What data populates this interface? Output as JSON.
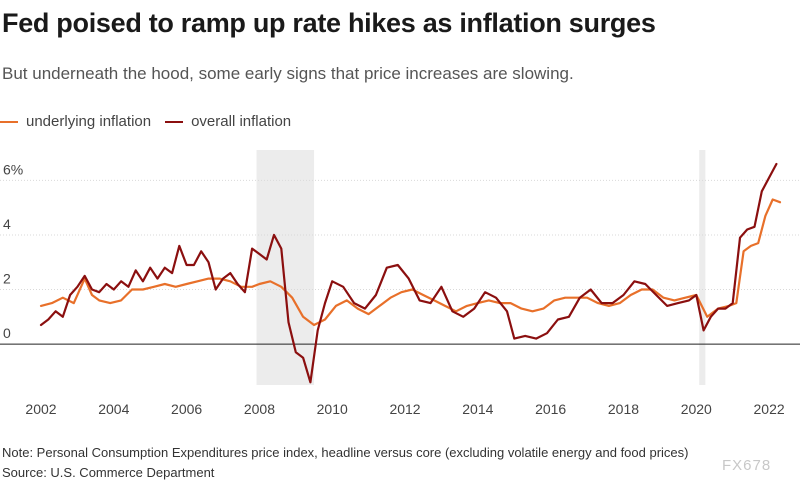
{
  "header": {
    "title": "Fed poised to ramp up rate hikes as inflation surges",
    "subtitle": "But underneath the hood, some early signs that price increases are slowing."
  },
  "footer": {
    "note": "Note: Personal Consumption Expenditures price index, headline versus core (excluding volatile energy and food prices)",
    "source": "Source: U.S. Commerce Department",
    "watermark": "FX678"
  },
  "colors": {
    "underlying": "#e8702a",
    "overall": "#8b0f0f",
    "recession": "#ececec"
  },
  "chart_data": {
    "type": "line",
    "title": "Fed poised to ramp up rate hikes as inflation surges",
    "xlabel": "",
    "ylabel": "",
    "xlim": [
      2002,
      2022.3
    ],
    "ylim": [
      -1.5,
      6.6
    ],
    "y_ticks": [
      0,
      2,
      4,
      6
    ],
    "y_tick_labels": [
      "0",
      "2",
      "4",
      "6%"
    ],
    "x_ticks": [
      2002,
      2004,
      2006,
      2008,
      2010,
      2012,
      2014,
      2016,
      2018,
      2020,
      2022
    ],
    "x_tick_labels": [
      "2002",
      "2004",
      "2006",
      "2008",
      "2010",
      "2012",
      "2014",
      "2016",
      "2018",
      "2020",
      "2022"
    ],
    "legend_position": "top-left",
    "shaded_periods": [
      {
        "label": "recession",
        "start": 2007.92,
        "end": 2009.5
      },
      {
        "label": "recession",
        "start": 2020.08,
        "end": 2020.25
      }
    ],
    "series": [
      {
        "name": "underlying inflation",
        "color": "#e8702a",
        "x": [
          2002.0,
          2002.3,
          2002.6,
          2002.9,
          2003.2,
          2003.4,
          2003.6,
          2003.9,
          2004.2,
          2004.5,
          2004.8,
          2005.1,
          2005.4,
          2005.7,
          2006.0,
          2006.3,
          2006.6,
          2006.9,
          2007.2,
          2007.5,
          2007.8,
          2008.0,
          2008.3,
          2008.6,
          2008.9,
          2009.2,
          2009.5,
          2009.8,
          2010.1,
          2010.4,
          2010.7,
          2011.0,
          2011.3,
          2011.6,
          2011.9,
          2012.2,
          2012.5,
          2012.8,
          2013.1,
          2013.4,
          2013.7,
          2014.0,
          2014.3,
          2014.6,
          2014.9,
          2015.2,
          2015.5,
          2015.8,
          2016.1,
          2016.4,
          2016.7,
          2017.0,
          2017.3,
          2017.6,
          2017.9,
          2018.2,
          2018.5,
          2018.8,
          2019.1,
          2019.4,
          2019.7,
          2020.0,
          2020.3,
          2020.6,
          2020.9,
          2021.1,
          2021.3,
          2021.5,
          2021.7,
          2021.9,
          2022.1,
          2022.3
        ],
        "values": [
          1.4,
          1.5,
          1.7,
          1.5,
          2.4,
          1.8,
          1.6,
          1.5,
          1.6,
          2.0,
          2.0,
          2.1,
          2.2,
          2.1,
          2.2,
          2.3,
          2.4,
          2.4,
          2.3,
          2.1,
          2.1,
          2.2,
          2.3,
          2.1,
          1.7,
          1.0,
          0.7,
          0.9,
          1.4,
          1.6,
          1.3,
          1.1,
          1.4,
          1.7,
          1.9,
          2.0,
          1.8,
          1.6,
          1.4,
          1.2,
          1.4,
          1.5,
          1.6,
          1.5,
          1.5,
          1.3,
          1.2,
          1.3,
          1.6,
          1.7,
          1.7,
          1.7,
          1.5,
          1.4,
          1.5,
          1.8,
          2.0,
          2.0,
          1.7,
          1.6,
          1.7,
          1.8,
          1.0,
          1.3,
          1.4,
          1.5,
          3.4,
          3.6,
          3.7,
          4.7,
          5.3,
          5.2
        ]
      },
      {
        "name": "overall inflation",
        "color": "#8b0f0f",
        "x": [
          2002.0,
          2002.2,
          2002.4,
          2002.6,
          2002.8,
          2003.0,
          2003.2,
          2003.4,
          2003.6,
          2003.8,
          2004.0,
          2004.2,
          2004.4,
          2004.6,
          2004.8,
          2005.0,
          2005.2,
          2005.4,
          2005.6,
          2005.8,
          2006.0,
          2006.2,
          2006.4,
          2006.6,
          2006.8,
          2007.0,
          2007.2,
          2007.4,
          2007.6,
          2007.8,
          2008.0,
          2008.2,
          2008.4,
          2008.6,
          2008.8,
          2009.0,
          2009.2,
          2009.4,
          2009.6,
          2009.8,
          2010.0,
          2010.3,
          2010.6,
          2010.9,
          2011.2,
          2011.5,
          2011.8,
          2012.1,
          2012.4,
          2012.7,
          2013.0,
          2013.3,
          2013.6,
          2013.9,
          2014.2,
          2014.5,
          2014.8,
          2015.0,
          2015.3,
          2015.6,
          2015.9,
          2016.2,
          2016.5,
          2016.8,
          2017.1,
          2017.4,
          2017.7,
          2018.0,
          2018.3,
          2018.6,
          2018.9,
          2019.2,
          2019.5,
          2019.8,
          2020.0,
          2020.2,
          2020.4,
          2020.6,
          2020.8,
          2021.0,
          2021.2,
          2021.4,
          2021.6,
          2021.8,
          2022.0,
          2022.2
        ],
        "values": [
          0.7,
          0.9,
          1.2,
          1.0,
          1.8,
          2.1,
          2.5,
          2.0,
          1.9,
          2.2,
          2.0,
          2.3,
          2.1,
          2.7,
          2.3,
          2.8,
          2.4,
          2.8,
          2.6,
          3.6,
          2.9,
          2.9,
          3.4,
          3.0,
          2.0,
          2.4,
          2.6,
          2.2,
          1.9,
          3.5,
          3.3,
          3.1,
          4.0,
          3.5,
          0.8,
          -0.3,
          -0.5,
          -1.4,
          0.5,
          1.5,
          2.3,
          2.1,
          1.5,
          1.3,
          1.8,
          2.8,
          2.9,
          2.4,
          1.6,
          1.5,
          2.1,
          1.2,
          1.0,
          1.3,
          1.9,
          1.7,
          1.2,
          0.2,
          0.3,
          0.2,
          0.4,
          0.9,
          1.0,
          1.7,
          2.0,
          1.5,
          1.5,
          1.8,
          2.3,
          2.2,
          1.8,
          1.4,
          1.5,
          1.6,
          1.8,
          0.5,
          1.0,
          1.3,
          1.3,
          1.5,
          3.9,
          4.2,
          4.3,
          5.6,
          6.1,
          6.6
        ]
      }
    ]
  }
}
